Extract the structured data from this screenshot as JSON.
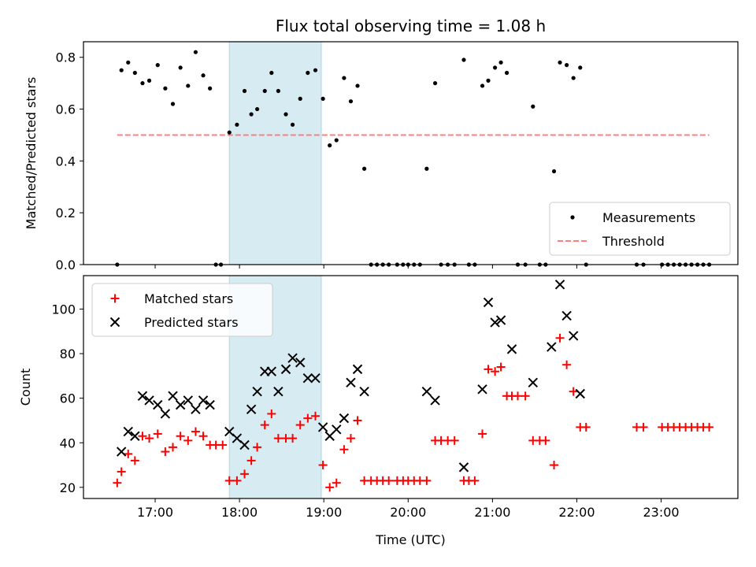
{
  "colors": {
    "measurement": "#000000",
    "threshold": "#ff7f7f",
    "highlight": "#add8e6",
    "matched": "#ff0000",
    "predicted": "#000000"
  },
  "chart_data": {
    "title": "Flux total observing time = 1.08 h",
    "xlabel": "Time (UTC)",
    "x_ticks": [
      "17:00",
      "18:00",
      "19:00",
      "20:00",
      "21:00",
      "22:00",
      "23:00"
    ],
    "x_tick_values": [
      17,
      18,
      19,
      20,
      21,
      22,
      23
    ],
    "xlim": [
      16.15,
      23.91
    ],
    "highlight_span": [
      17.88,
      18.97
    ],
    "top": {
      "type": "scatter",
      "ylabel": "Matched/Predicted stars",
      "ylim": [
        0,
        0.86
      ],
      "y_ticks": [
        0.0,
        0.2,
        0.4,
        0.6,
        0.8
      ],
      "y_tick_labels": [
        "0.0",
        "0.2",
        "0.4",
        "0.6",
        "0.8"
      ],
      "legend": [
        "Measurements",
        "Threshold"
      ],
      "legend_position": "lower right",
      "threshold": {
        "value": 0.5,
        "x_range": [
          16.55,
          23.57
        ]
      },
      "series": [
        {
          "name": "Measurements",
          "points": [
            [
              16.55,
              0.0
            ],
            [
              16.6,
              0.75
            ],
            [
              16.68,
              0.78
            ],
            [
              16.76,
              0.74
            ],
            [
              16.85,
              0.7
            ],
            [
              16.93,
              0.71
            ],
            [
              17.03,
              0.77
            ],
            [
              17.12,
              0.68
            ],
            [
              17.21,
              0.62
            ],
            [
              17.3,
              0.76
            ],
            [
              17.39,
              0.69
            ],
            [
              17.48,
              0.82
            ],
            [
              17.57,
              0.73
            ],
            [
              17.65,
              0.68
            ],
            [
              17.72,
              0.0
            ],
            [
              17.78,
              0.0
            ],
            [
              17.88,
              0.51
            ],
            [
              17.97,
              0.54
            ],
            [
              18.06,
              0.67
            ],
            [
              18.14,
              0.58
            ],
            [
              18.21,
              0.6
            ],
            [
              18.3,
              0.67
            ],
            [
              18.38,
              0.74
            ],
            [
              18.46,
              0.67
            ],
            [
              18.55,
              0.58
            ],
            [
              18.63,
              0.54
            ],
            [
              18.72,
              0.64
            ],
            [
              18.81,
              0.74
            ],
            [
              18.9,
              0.75
            ],
            [
              18.99,
              0.64
            ],
            [
              19.07,
              0.46
            ],
            [
              19.15,
              0.48
            ],
            [
              19.24,
              0.72
            ],
            [
              19.32,
              0.63
            ],
            [
              19.4,
              0.69
            ],
            [
              19.48,
              0.37
            ],
            [
              19.56,
              0.0
            ],
            [
              19.63,
              0.0
            ],
            [
              19.7,
              0.0
            ],
            [
              19.77,
              0.0
            ],
            [
              19.87,
              0.0
            ],
            [
              19.94,
              0.0
            ],
            [
              20.0,
              0.0
            ],
            [
              20.07,
              0.0
            ],
            [
              20.14,
              0.0
            ],
            [
              20.22,
              0.37
            ],
            [
              20.32,
              0.7
            ],
            [
              20.39,
              0.0
            ],
            [
              20.47,
              0.0
            ],
            [
              20.55,
              0.0
            ],
            [
              20.66,
              0.79
            ],
            [
              20.72,
              0.0
            ],
            [
              20.79,
              0.0
            ],
            [
              20.88,
              0.69
            ],
            [
              20.95,
              0.71
            ],
            [
              21.03,
              0.76
            ],
            [
              21.1,
              0.78
            ],
            [
              21.17,
              0.74
            ],
            [
              21.3,
              0.0
            ],
            [
              21.39,
              0.0
            ],
            [
              21.48,
              0.61
            ],
            [
              21.56,
              0.0
            ],
            [
              21.63,
              0.0
            ],
            [
              21.73,
              0.36
            ],
            [
              21.8,
              0.78
            ],
            [
              21.88,
              0.77
            ],
            [
              21.96,
              0.72
            ],
            [
              22.04,
              0.76
            ],
            [
              22.11,
              0.0
            ],
            [
              22.71,
              0.0
            ],
            [
              22.79,
              0.0
            ],
            [
              23.01,
              0.0
            ],
            [
              23.08,
              0.0
            ],
            [
              23.15,
              0.0
            ],
            [
              23.22,
              0.0
            ],
            [
              23.29,
              0.0
            ],
            [
              23.36,
              0.0
            ],
            [
              23.43,
              0.0
            ],
            [
              23.5,
              0.0
            ],
            [
              23.57,
              0.0
            ]
          ]
        }
      ]
    },
    "bottom": {
      "type": "scatter",
      "ylabel": "Count",
      "ylim": [
        15,
        115
      ],
      "y_ticks": [
        20,
        40,
        60,
        80,
        100
      ],
      "y_tick_labels": [
        "20",
        "40",
        "60",
        "80",
        "100"
      ],
      "legend": [
        "Matched stars",
        "Predicted stars"
      ],
      "legend_position": "upper left",
      "series": [
        {
          "name": "Matched stars",
          "points": [
            [
              16.55,
              22
            ],
            [
              16.6,
              27
            ],
            [
              16.68,
              35
            ],
            [
              16.76,
              32
            ],
            [
              16.85,
              43
            ],
            [
              16.93,
              42
            ],
            [
              17.03,
              44
            ],
            [
              17.12,
              36
            ],
            [
              17.21,
              38
            ],
            [
              17.3,
              43
            ],
            [
              17.39,
              41
            ],
            [
              17.48,
              45
            ],
            [
              17.57,
              43
            ],
            [
              17.65,
              39
            ],
            [
              17.72,
              39
            ],
            [
              17.8,
              39
            ],
            [
              17.88,
              23
            ],
            [
              17.97,
              23
            ],
            [
              18.06,
              26
            ],
            [
              18.14,
              32
            ],
            [
              18.21,
              38
            ],
            [
              18.3,
              48
            ],
            [
              18.38,
              53
            ],
            [
              18.46,
              42
            ],
            [
              18.55,
              42
            ],
            [
              18.63,
              42
            ],
            [
              18.72,
              48
            ],
            [
              18.81,
              51
            ],
            [
              18.9,
              52
            ],
            [
              18.99,
              30
            ],
            [
              19.07,
              20
            ],
            [
              19.15,
              22
            ],
            [
              19.24,
              37
            ],
            [
              19.32,
              42
            ],
            [
              19.4,
              50
            ],
            [
              19.48,
              23
            ],
            [
              19.56,
              23
            ],
            [
              19.63,
              23
            ],
            [
              19.7,
              23
            ],
            [
              19.77,
              23
            ],
            [
              19.87,
              23
            ],
            [
              19.94,
              23
            ],
            [
              20.0,
              23
            ],
            [
              20.07,
              23
            ],
            [
              20.14,
              23
            ],
            [
              20.22,
              23
            ],
            [
              20.32,
              41
            ],
            [
              20.39,
              41
            ],
            [
              20.47,
              41
            ],
            [
              20.55,
              41
            ],
            [
              20.66,
              23
            ],
            [
              20.72,
              23
            ],
            [
              20.79,
              23
            ],
            [
              20.88,
              44
            ],
            [
              20.95,
              73
            ],
            [
              21.03,
              72
            ],
            [
              21.1,
              74
            ],
            [
              21.17,
              61
            ],
            [
              21.23,
              61
            ],
            [
              21.3,
              61
            ],
            [
              21.39,
              61
            ],
            [
              21.48,
              41
            ],
            [
              21.56,
              41
            ],
            [
              21.63,
              41
            ],
            [
              21.73,
              30
            ],
            [
              21.8,
              87
            ],
            [
              21.88,
              75
            ],
            [
              21.96,
              63
            ],
            [
              22.04,
              47
            ],
            [
              22.11,
              47
            ],
            [
              22.71,
              47
            ],
            [
              22.79,
              47
            ],
            [
              23.01,
              47
            ],
            [
              23.08,
              47
            ],
            [
              23.15,
              47
            ],
            [
              23.22,
              47
            ],
            [
              23.29,
              47
            ],
            [
              23.36,
              47
            ],
            [
              23.43,
              47
            ],
            [
              23.5,
              47
            ],
            [
              23.57,
              47
            ]
          ]
        },
        {
          "name": "Predicted stars",
          "points": [
            [
              16.6,
              36
            ],
            [
              16.68,
              45
            ],
            [
              16.76,
              43
            ],
            [
              16.85,
              61
            ],
            [
              16.93,
              59
            ],
            [
              17.03,
              57
            ],
            [
              17.12,
              53
            ],
            [
              17.21,
              61
            ],
            [
              17.3,
              57
            ],
            [
              17.39,
              59
            ],
            [
              17.48,
              55
            ],
            [
              17.57,
              59
            ],
            [
              17.65,
              57
            ],
            [
              17.88,
              45
            ],
            [
              17.97,
              42
            ],
            [
              18.06,
              39
            ],
            [
              18.14,
              55
            ],
            [
              18.21,
              63
            ],
            [
              18.3,
              72
            ],
            [
              18.38,
              72
            ],
            [
              18.46,
              63
            ],
            [
              18.55,
              73
            ],
            [
              18.63,
              78
            ],
            [
              18.72,
              76
            ],
            [
              18.81,
              69
            ],
            [
              18.9,
              69
            ],
            [
              18.99,
              47
            ],
            [
              19.07,
              43
            ],
            [
              19.15,
              46
            ],
            [
              19.24,
              51
            ],
            [
              19.32,
              67
            ],
            [
              19.4,
              73
            ],
            [
              19.48,
              63
            ],
            [
              20.22,
              63
            ],
            [
              20.32,
              59
            ],
            [
              20.66,
              29
            ],
            [
              20.88,
              64
            ],
            [
              20.95,
              103
            ],
            [
              21.03,
              94
            ],
            [
              21.1,
              95
            ],
            [
              21.23,
              82
            ],
            [
              21.48,
              67
            ],
            [
              21.7,
              83
            ],
            [
              21.8,
              111
            ],
            [
              21.88,
              97
            ],
            [
              21.96,
              88
            ],
            [
              22.04,
              62
            ]
          ]
        }
      ]
    }
  }
}
